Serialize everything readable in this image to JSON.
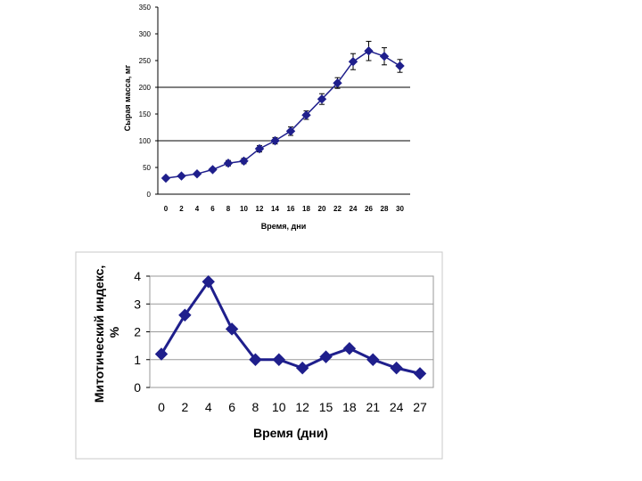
{
  "chart_data": [
    {
      "type": "line",
      "title": "",
      "xlabel": "Время, дни",
      "ylabel": "Сырая масса, мг",
      "x": [
        "0",
        "2",
        "4",
        "6",
        "8",
        "10",
        "12",
        "14",
        "16",
        "18",
        "20",
        "22",
        "24",
        "26",
        "28",
        "30"
      ],
      "ylim": [
        0,
        350
      ],
      "yticks": [
        0,
        50,
        100,
        150,
        200,
        250,
        300,
        350
      ],
      "gridlines_y": [
        100,
        200
      ],
      "marker": "diamond",
      "color": "#1f1f8c",
      "series": [
        {
          "values": [
            30,
            34,
            38,
            46,
            58,
            62,
            85,
            100,
            118,
            148,
            178,
            208,
            248,
            268,
            258,
            240
          ],
          "error": [
            3,
            3,
            3,
            3,
            5,
            5,
            6,
            6,
            8,
            8,
            10,
            10,
            15,
            18,
            16,
            12
          ]
        }
      ]
    },
    {
      "type": "line",
      "title": "",
      "xlabel": "Время (дни)",
      "ylabel": "Митотический индекс, %",
      "x": [
        "0",
        "2",
        "4",
        "6",
        "8",
        "10",
        "12",
        "15",
        "18",
        "21",
        "24",
        "27"
      ],
      "ylim": [
        0,
        4
      ],
      "yticks": [
        0,
        1,
        2,
        3,
        4
      ],
      "grid": true,
      "marker": "diamond",
      "color": "#1f1f8c",
      "series": [
        {
          "values": [
            1.2,
            2.6,
            3.8,
            2.1,
            1.0,
            1.0,
            0.7,
            1.1,
            1.4,
            1.0,
            0.7,
            0.5
          ]
        }
      ]
    }
  ]
}
